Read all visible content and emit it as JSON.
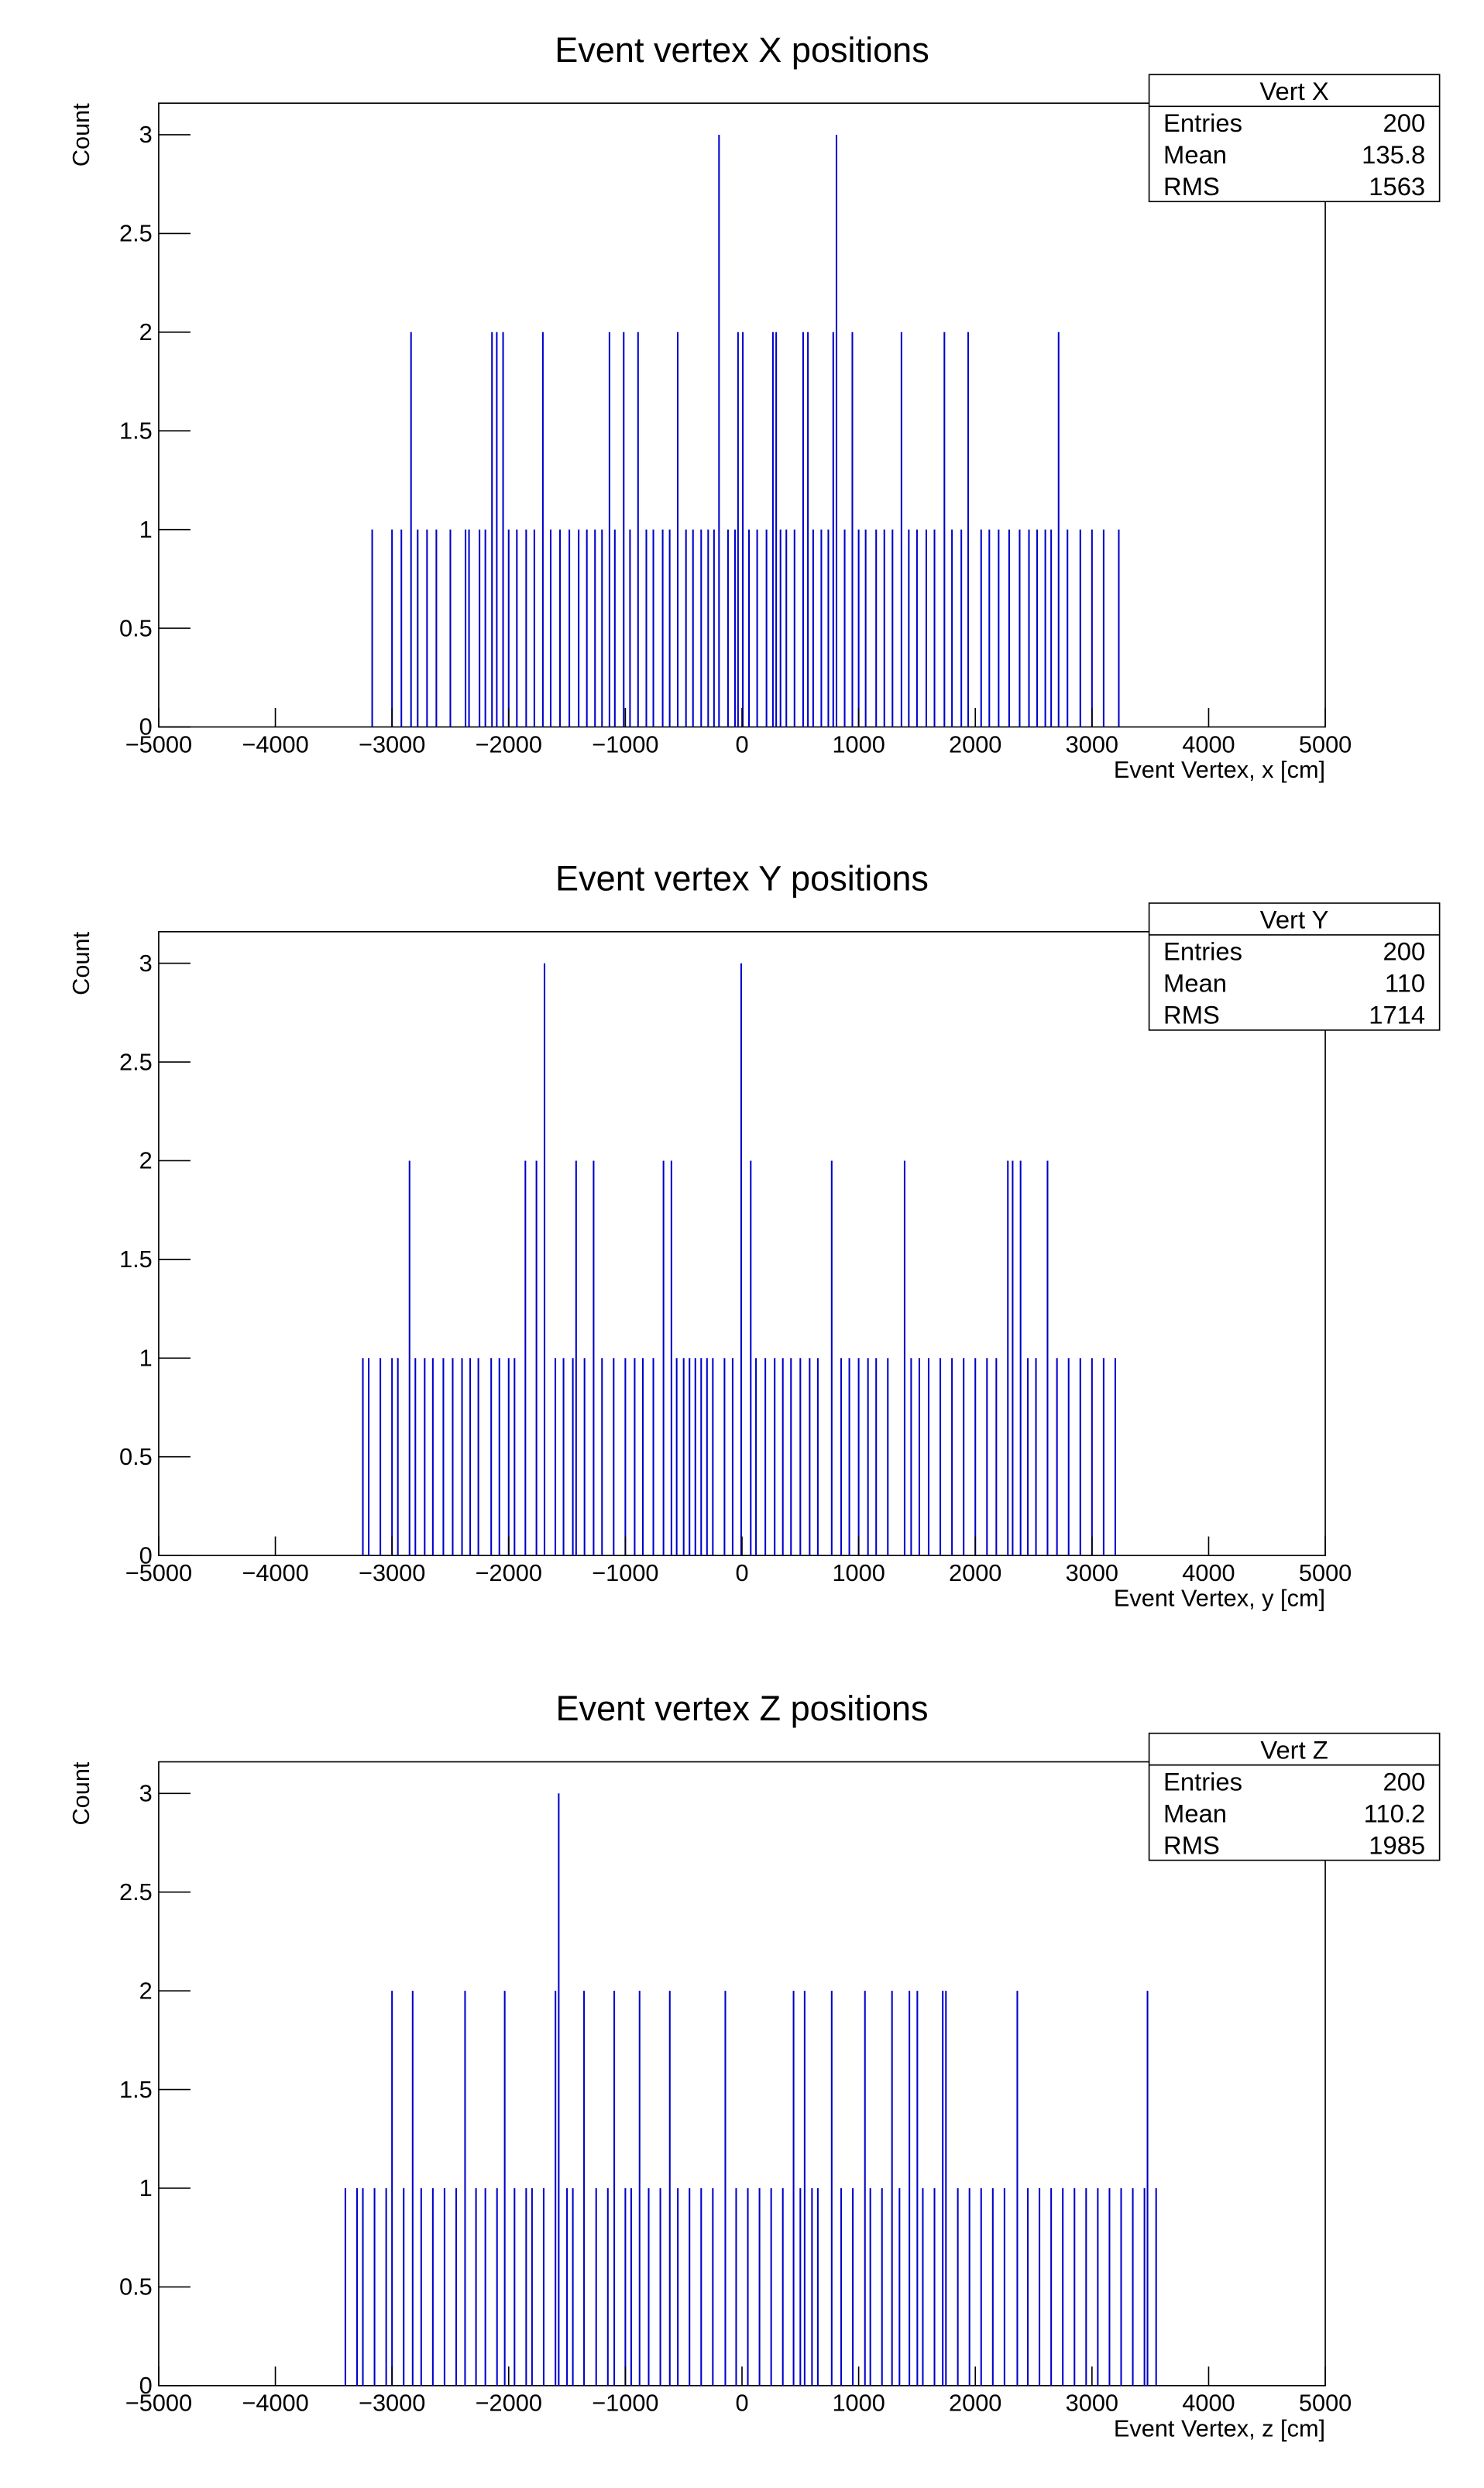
{
  "chart_data": [
    {
      "type": "bar",
      "title": "Event vertex X positions",
      "x_label": "Event Vertex, x [cm]",
      "y_label": "Count",
      "color": "#0000cc",
      "stats": {
        "title": "Vert X",
        "rows": [
          {
            "label": "Entries",
            "value": 200
          },
          {
            "label": "Mean",
            "value": 135.8
          },
          {
            "label": "RMS",
            "value": 1563
          }
        ]
      },
      "x": [
        -3170,
        -3000,
        -2920,
        -2780,
        -2700,
        -2620,
        -2500,
        -2370,
        -2340,
        -2250,
        -2200,
        -2000,
        -1930,
        -1850,
        -1780,
        -1640,
        -1560,
        -1480,
        -1400,
        -1330,
        -1260,
        -1200,
        -1090,
        -960,
        -820,
        -760,
        -680,
        -620,
        -480,
        -420,
        -350,
        -290,
        -240,
        -120,
        -60,
        60,
        130,
        210,
        330,
        380,
        450,
        610,
        680,
        740,
        880,
        1000,
        1060,
        1150,
        1220,
        1290,
        1430,
        1500,
        1580,
        1650,
        1800,
        1880,
        2050,
        2120,
        2200,
        2290,
        2380,
        2460,
        2530,
        2600,
        2650,
        2790,
        2900,
        3000,
        3100,
        3230,
        -2837,
        -2143,
        -2102,
        -2048,
        -1707,
        -1136,
        -1014,
        -891,
        -551,
        -34,
        7,
        265,
        293,
        524,
        565,
        782,
        946,
        1367,
        1735,
        1939,
        2714,
        -197,
        810
      ],
      "values": [
        1,
        1,
        1,
        1,
        1,
        1,
        1,
        1,
        1,
        1,
        1,
        1,
        1,
        1,
        1,
        1,
        1,
        1,
        1,
        1,
        1,
        1,
        1,
        1,
        1,
        1,
        1,
        1,
        1,
        1,
        1,
        1,
        1,
        1,
        1,
        1,
        1,
        1,
        1,
        1,
        1,
        1,
        1,
        1,
        1,
        1,
        1,
        1,
        1,
        1,
        1,
        1,
        1,
        1,
        1,
        1,
        1,
        1,
        1,
        1,
        1,
        1,
        1,
        1,
        1,
        1,
        1,
        1,
        1,
        1,
        2,
        2,
        2,
        2,
        2,
        2,
        2,
        2,
        2,
        2,
        2,
        2,
        2,
        2,
        2,
        2,
        2,
        2,
        2,
        2,
        2,
        3,
        3
      ],
      "xlim": [
        -5000,
        5000
      ],
      "ylim": [
        0,
        3.16
      ],
      "xticks": [
        {
          "value": -5000,
          "label": "−5000"
        },
        {
          "value": -4000,
          "label": "−4000"
        },
        {
          "value": -3000,
          "label": "−3000"
        },
        {
          "value": -2000,
          "label": "−2000"
        },
        {
          "value": -1000,
          "label": "−1000"
        },
        0,
        1000,
        2000,
        3000,
        4000,
        5000
      ],
      "yticks": [
        0,
        0.5,
        1,
        1.5,
        2,
        2.5,
        3
      ]
    },
    {
      "type": "bar",
      "title": "Event vertex Y positions",
      "x_label": "Event Vertex, y [cm]",
      "y_label": "Count",
      "color": "#0000cc",
      "stats": {
        "title": "Vert Y",
        "rows": [
          {
            "label": "Entries",
            "value": 200
          },
          {
            "label": "Mean",
            "value": 110
          },
          {
            "label": "RMS",
            "value": 1714
          }
        ]
      },
      "x": [
        -3250,
        -3200,
        -3100,
        -3000,
        -2950,
        -2800,
        -2720,
        -2650,
        -2560,
        -2480,
        -2400,
        -2330,
        -2260,
        -2150,
        -2080,
        -2000,
        -1950,
        -1600,
        -1530,
        -1450,
        -1350,
        -1200,
        -1100,
        -1000,
        -920,
        -850,
        -760,
        -560,
        -500,
        -450,
        -400,
        -350,
        -300,
        -250,
        -150,
        -80,
        120,
        200,
        280,
        350,
        420,
        500,
        580,
        650,
        850,
        920,
        1000,
        1080,
        1150,
        1250,
        1450,
        1520,
        1600,
        1700,
        1800,
        1900,
        2000,
        2100,
        2180,
        2450,
        2520,
        2700,
        2800,
        2900,
        3000,
        3100,
        3200,
        -2850,
        -1857,
        -1762,
        -1422,
        -1272,
        -673,
        -605,
        75,
        769,
        1394,
        2279,
        2320,
        2388,
        2619,
        -1693,
        -7
      ],
      "values": [
        1,
        1,
        1,
        1,
        1,
        1,
        1,
        1,
        1,
        1,
        1,
        1,
        1,
        1,
        1,
        1,
        1,
        1,
        1,
        1,
        1,
        1,
        1,
        1,
        1,
        1,
        1,
        1,
        1,
        1,
        1,
        1,
        1,
        1,
        1,
        1,
        1,
        1,
        1,
        1,
        1,
        1,
        1,
        1,
        1,
        1,
        1,
        1,
        1,
        1,
        1,
        1,
        1,
        1,
        1,
        1,
        1,
        1,
        1,
        1,
        1,
        1,
        1,
        1,
        1,
        1,
        1,
        2,
        2,
        2,
        2,
        2,
        2,
        2,
        2,
        2,
        2,
        2,
        2,
        2,
        2,
        3,
        3
      ],
      "xlim": [
        -5000,
        5000
      ],
      "ylim": [
        0,
        3.16
      ],
      "xticks": [
        {
          "value": -5000,
          "label": "−5000"
        },
        {
          "value": -4000,
          "label": "−4000"
        },
        {
          "value": -3000,
          "label": "−3000"
        },
        {
          "value": -2000,
          "label": "−2000"
        },
        {
          "value": -1000,
          "label": "−1000"
        },
        0,
        1000,
        2000,
        3000,
        4000,
        5000
      ],
      "yticks": [
        0,
        0.5,
        1,
        1.5,
        2,
        2.5,
        3
      ]
    },
    {
      "type": "bar",
      "title": "Event vertex Z positions",
      "x_label": "Event Vertex, z [cm]",
      "y_label": "Count",
      "color": "#0000cc",
      "stats": {
        "title": "Vert Z",
        "rows": [
          {
            "label": "Entries",
            "value": 200
          },
          {
            "label": "Mean",
            "value": 110.2
          },
          {
            "label": "RMS",
            "value": 1985
          }
        ]
      },
      "x": [
        -3400,
        -3300,
        -3250,
        -3150,
        -3050,
        -2900,
        -2750,
        -2650,
        -2550,
        -2450,
        -2280,
        -2200,
        -2100,
        -1950,
        -1850,
        -1800,
        -1700,
        -1500,
        -1450,
        -1250,
        -1150,
        -1000,
        -950,
        -800,
        -700,
        -550,
        -450,
        -350,
        -250,
        -50,
        50,
        150,
        250,
        350,
        500,
        600,
        650,
        850,
        950,
        1100,
        1200,
        1350,
        1550,
        1650,
        1850,
        1950,
        2050,
        2150,
        2250,
        2450,
        2550,
        2650,
        2750,
        2850,
        2950,
        3050,
        3150,
        3250,
        3350,
        3450,
        3550,
        -3000,
        -2823,
        -2374,
        -2034,
        -1599,
        -1354,
        -1095,
        -878,
        -619,
        -143,
        442,
        537,
        769,
        1054,
        1286,
        1435,
        1503,
        1721,
        1748,
        2360,
        3476,
        -1571
      ],
      "values": [
        1,
        1,
        1,
        1,
        1,
        1,
        1,
        1,
        1,
        1,
        1,
        1,
        1,
        1,
        1,
        1,
        1,
        1,
        1,
        1,
        1,
        1,
        1,
        1,
        1,
        1,
        1,
        1,
        1,
        1,
        1,
        1,
        1,
        1,
        1,
        1,
        1,
        1,
        1,
        1,
        1,
        1,
        1,
        1,
        1,
        1,
        1,
        1,
        1,
        1,
        1,
        1,
        1,
        1,
        1,
        1,
        1,
        1,
        1,
        1,
        1,
        2,
        2,
        2,
        2,
        2,
        2,
        2,
        2,
        2,
        2,
        2,
        2,
        2,
        2,
        2,
        2,
        2,
        2,
        2,
        2,
        2,
        3
      ],
      "xlim": [
        -5000,
        5000
      ],
      "ylim": [
        0,
        3.16
      ],
      "xticks": [
        {
          "value": -5000,
          "label": "−5000"
        },
        {
          "value": -4000,
          "label": "−4000"
        },
        {
          "value": -3000,
          "label": "−3000"
        },
        {
          "value": -2000,
          "label": "−2000"
        },
        {
          "value": -1000,
          "label": "−1000"
        },
        0,
        1000,
        2000,
        3000,
        4000,
        5000
      ],
      "yticks": [
        0,
        0.5,
        1,
        1.5,
        2,
        2.5,
        3
      ]
    }
  ]
}
